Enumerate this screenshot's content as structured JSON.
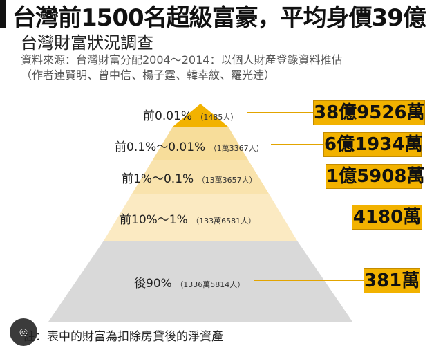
{
  "title": "台灣前1500名超級富豪，平均身價39億",
  "subtitle": "台灣財富狀況調查",
  "source_line1": "資料來源：台灣財富分配2004～2014：以個人財產登錄資料推估",
  "source_line2": "（作者連賢明、曾中信、楊子霆、韓幸紋、羅光達）",
  "note": "註：表中的財富為扣除房貸後的淨資產",
  "note_icon": "google-lens-icon",
  "colors": {
    "accent": "#f2b200",
    "tier_light": "#f7dd9a",
    "tier_lighter": "#fbeac2",
    "base": "#d9d9d9"
  },
  "chart_data": {
    "type": "pyramid",
    "title": "台灣財富狀況調查",
    "tiers": [
      {
        "label": "前0.01%",
        "count": "（1485人）",
        "value": "38億9526萬"
      },
      {
        "label": "前0.1%～0.01%",
        "count": "（1萬3367人）",
        "value": "6億1934萬"
      },
      {
        "label": "前1%～0.1%",
        "count": "（13萬3657人）",
        "value": "1億5908萬"
      },
      {
        "label": "前10%～1%",
        "count": "（133萬6581人）",
        "value": "4180萬"
      },
      {
        "label": "後90%",
        "count": "（1336萬5814人）",
        "value": "381萬"
      }
    ]
  }
}
